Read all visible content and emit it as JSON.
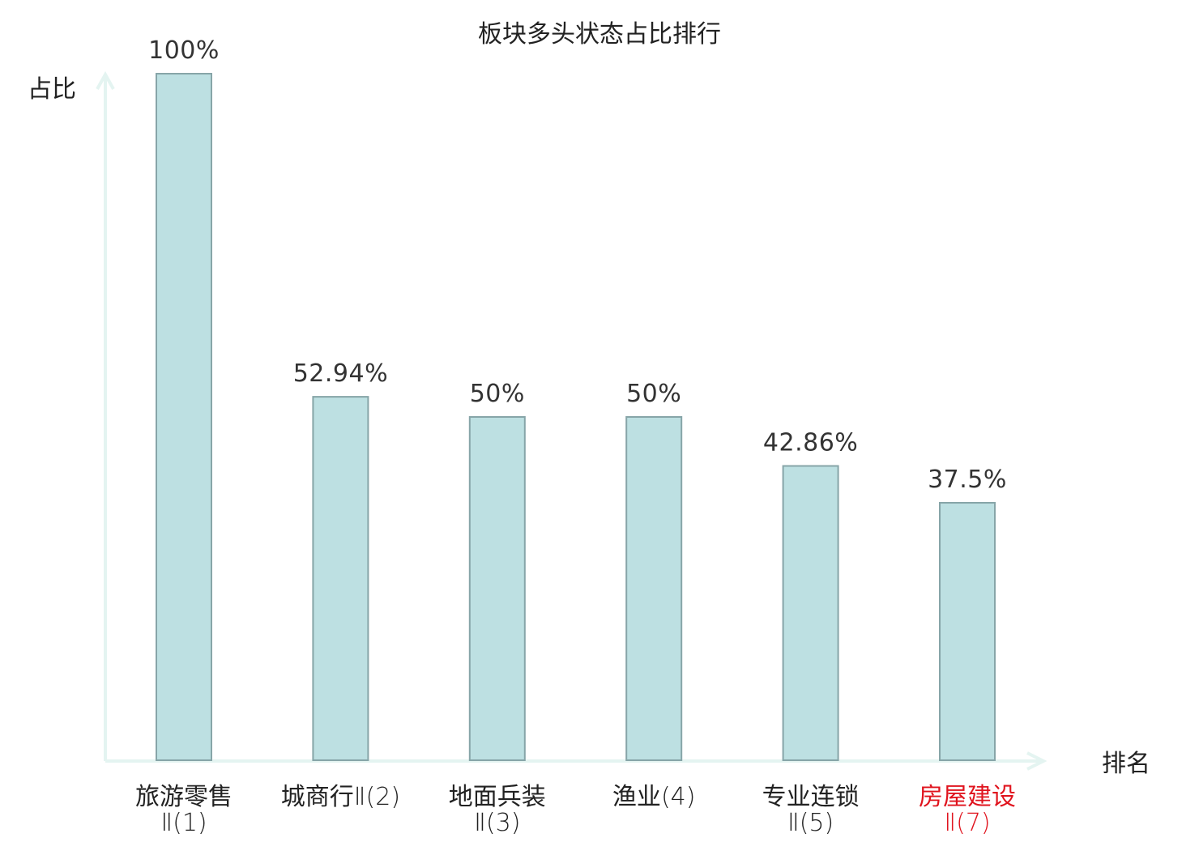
{
  "chart_data": {
    "type": "bar",
    "title": "板块多头状态占比排行",
    "ylabel": "占比",
    "xlabel": "排名",
    "ylim": [
      0,
      100
    ],
    "unit": "%",
    "grid": false,
    "categories": [
      {
        "name": "旅游零售",
        "code": "Ⅱ(1)",
        "color": "#222222"
      },
      {
        "name": "城商行",
        "code": "Ⅱ(2)",
        "color": "#222222"
      },
      {
        "name": "地面兵装",
        "code": "Ⅱ(3)",
        "color": "#222222"
      },
      {
        "name": "渔业",
        "code": "(4)",
        "color": "#222222"
      },
      {
        "name": "专业连锁",
        "code": "Ⅱ(5)",
        "color": "#222222"
      },
      {
        "name": "房屋建设",
        "code": "Ⅱ(7)",
        "color": "#e0141e"
      }
    ],
    "values": [
      100,
      52.94,
      50,
      50,
      42.86,
      37.5
    ],
    "value_labels": [
      "100%",
      "52.94%",
      "50%",
      "50%",
      "42.86%",
      "37.5%"
    ],
    "colors": {
      "bar_fill": "#bde0e2",
      "bar_stroke": "#87a5a8",
      "axis": "#e4f4f1",
      "highlight_label": "#e0141e"
    }
  }
}
